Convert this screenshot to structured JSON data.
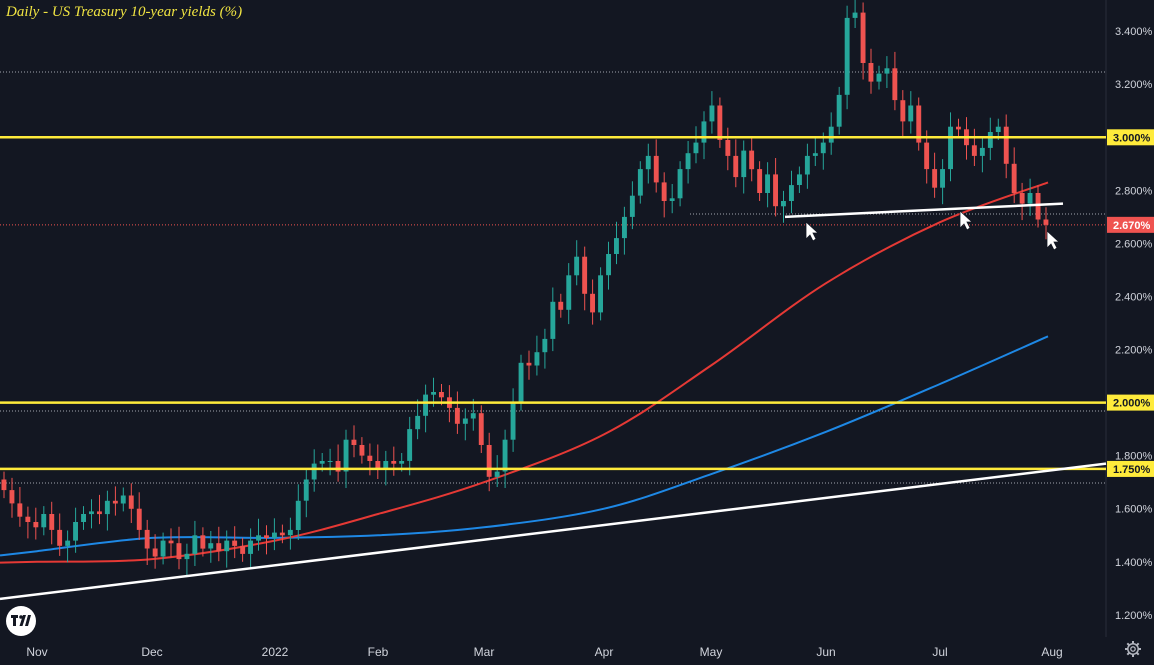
{
  "title": "Daily - US Treasury 10-year yields (%)",
  "chart_data": {
    "type": "candlestick",
    "title": "Daily - US Treasury 10-year yields (%)",
    "xlabel": "",
    "ylabel": "",
    "ylim": [
      1.1,
      3.55
    ],
    "y_ticks": [
      "3.400%",
      "3.200%",
      "2.800%",
      "2.600%",
      "2.400%",
      "2.200%",
      "1.800%",
      "1.600%",
      "1.400%",
      "1.200%"
    ],
    "x_ticks": [
      "Nov",
      "Dec",
      "2022",
      "Feb",
      "Mar",
      "Apr",
      "May",
      "Jun",
      "Jul",
      "Aug"
    ],
    "grid": false,
    "colors": {
      "up": "#26a69a",
      "down": "#ef5350",
      "ma_red": "#e53935",
      "ma_blue": "#1e88e5",
      "level": "#ffeb3b",
      "trend": "#ffffff",
      "last_price": "#ef5350"
    },
    "horizontal_levels": [
      {
        "label": "3.000%",
        "value": 3.0
      },
      {
        "label": "2.000%",
        "value": 2.0
      },
      {
        "label": "1.750%",
        "value": 1.75
      }
    ],
    "last_price": {
      "label": "2.670%",
      "value": 2.67
    },
    "close_series": [
      1.67,
      1.62,
      1.57,
      1.55,
      1.53,
      1.58,
      1.52,
      1.46,
      1.48,
      1.55,
      1.58,
      1.59,
      1.58,
      1.63,
      1.62,
      1.65,
      1.6,
      1.52,
      1.45,
      1.42,
      1.48,
      1.47,
      1.41,
      1.43,
      1.5,
      1.45,
      1.47,
      1.44,
      1.48,
      1.46,
      1.43,
      1.48,
      1.5,
      1.49,
      1.51,
      1.5,
      1.52,
      1.63,
      1.71,
      1.77,
      1.78,
      1.78,
      1.74,
      1.86,
      1.84,
      1.8,
      1.78,
      1.75,
      1.78,
      1.77,
      1.78,
      1.9,
      1.95,
      2.03,
      2.04,
      2.02,
      1.98,
      1.92,
      1.94,
      1.96,
      1.84,
      1.72,
      1.74,
      1.86,
      2.0,
      2.15,
      2.14,
      2.19,
      2.24,
      2.38,
      2.35,
      2.48,
      2.55,
      2.41,
      2.34,
      2.48,
      2.56,
      2.62,
      2.7,
      2.78,
      2.88,
      2.93,
      2.83,
      2.76,
      2.77,
      2.88,
      2.94,
      2.98,
      3.06,
      3.12,
      2.99,
      2.93,
      2.85,
      2.95,
      2.88,
      2.79,
      2.86,
      2.74,
      2.76,
      2.82,
      2.86,
      2.93,
      2.94,
      2.98,
      3.04,
      3.16,
      3.45,
      3.47,
      3.28,
      3.21,
      3.24,
      3.26,
      3.14,
      3.06,
      3.12,
      2.98,
      2.88,
      2.81,
      2.88,
      3.04,
      3.03,
      2.97,
      2.93,
      2.96,
      3.02,
      3.04,
      2.9,
      2.79,
      2.75,
      2.79,
      2.69,
      2.67
    ],
    "ma_red": {
      "x": [
        "Nov",
        "Dec",
        "2022",
        "Feb",
        "Mar",
        "Apr",
        "May",
        "Jun",
        "Jul",
        "Aug"
      ],
      "values": [
        1.4,
        1.41,
        1.48,
        1.58,
        1.7,
        1.88,
        2.14,
        2.45,
        2.68,
        2.83
      ]
    },
    "ma_blue": {
      "x": [
        "Nov",
        "Dec",
        "2022",
        "Feb",
        "Mar",
        "Apr",
        "May",
        "Jun",
        "Jul",
        "Aug"
      ],
      "values": [
        1.44,
        1.49,
        1.49,
        1.5,
        1.53,
        1.6,
        1.73,
        1.89,
        2.07,
        2.25
      ]
    },
    "trendlines": [
      {
        "start": 1.26,
        "end": 1.77
      },
      {
        "start": 2.7,
        "end": 2.75
      }
    ]
  }
}
